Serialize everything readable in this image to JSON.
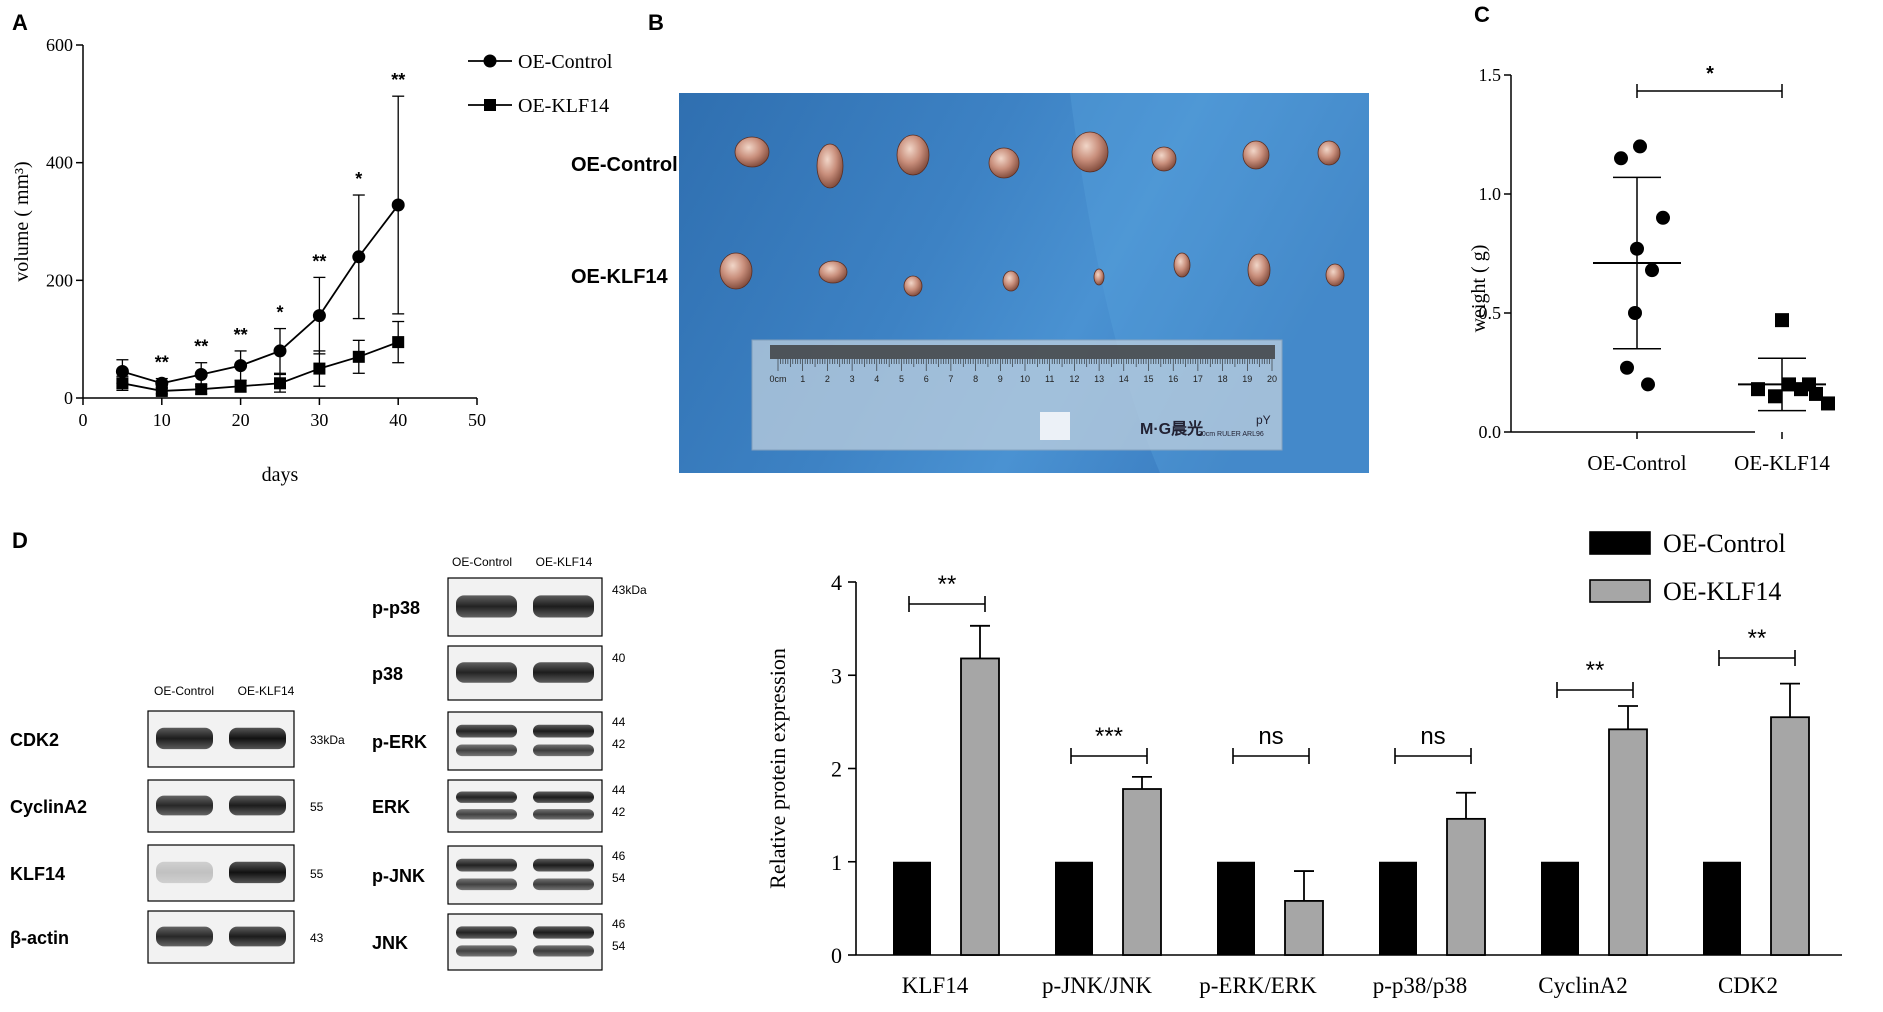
{
  "panels": {
    "a": "A",
    "b": "B",
    "c": "C",
    "d": "D"
  },
  "chart_data": [
    {
      "panel": "A",
      "type": "line",
      "xlabel": "days",
      "ylabel": "volume ( mm³)",
      "xlim": [
        0,
        50
      ],
      "ylim": [
        0,
        600
      ],
      "xticks": [
        "0",
        "10",
        "20",
        "30",
        "40",
        "50"
      ],
      "yticks": [
        "0",
        "200",
        "400",
        "600"
      ],
      "x": [
        5,
        10,
        15,
        20,
        25,
        30,
        35,
        40
      ],
      "series": [
        {
          "name": "OE-Control",
          "marker": "circle",
          "values": [
            45,
            25,
            40,
            55,
            80,
            140,
            240,
            328
          ],
          "errors": [
            20,
            8,
            20,
            25,
            38,
            65,
            105,
            185
          ]
        },
        {
          "name": "OE-KLF14",
          "marker": "square",
          "values": [
            25,
            12,
            15,
            20,
            25,
            50,
            70,
            95
          ],
          "errors": [
            12,
            5,
            8,
            10,
            15,
            30,
            28,
            35
          ]
        }
      ],
      "annotations": [
        "",
        "**",
        "**",
        "**",
        "*",
        "**",
        "*",
        "**"
      ],
      "legend": "top-right"
    },
    {
      "panel": "C",
      "type": "scatter",
      "ylabel": "weight ( g)",
      "ylim": [
        0,
        1.5
      ],
      "yticks": [
        "0.0",
        "0.5",
        "1.0",
        "1.5"
      ],
      "categories": [
        "OE-Control",
        "OE-KLF14"
      ],
      "groups": [
        {
          "name": "OE-Control",
          "marker": "circle",
          "points": [
            1.2,
            1.15,
            0.9,
            0.77,
            0.68,
            0.5,
            0.27,
            0.2
          ],
          "mean": 0.71,
          "sd": 0.36
        },
        {
          "name": "OE-KLF14",
          "marker": "square",
          "points": [
            0.47,
            0.18,
            0.15,
            0.2,
            0.18,
            0.2,
            0.16,
            0.12
          ],
          "mean": 0.2,
          "sd": 0.11
        }
      ],
      "significance": "*"
    },
    {
      "panel": "D",
      "type": "bar",
      "ylabel": "Relative protein expression",
      "ylim": [
        0,
        4
      ],
      "yticks": [
        "0",
        "1",
        "2",
        "3",
        "4"
      ],
      "categories": [
        "KLF14",
        "p-JNK/JNK",
        "p-ERK/ERK",
        "p-p38/p38",
        "CyclinA2",
        "CDK2"
      ],
      "series": [
        {
          "name": "OE-Control",
          "color": "#000000",
          "values": [
            1,
            1,
            1,
            1,
            1,
            1
          ]
        },
        {
          "name": "OE-KLF14",
          "color": "#a6a6a6",
          "values": [
            3.18,
            1.78,
            0.58,
            1.46,
            2.42,
            2.55
          ],
          "errors": [
            0.35,
            0.13,
            0.32,
            0.28,
            0.25,
            0.36
          ]
        }
      ],
      "significance": [
        "**",
        "***",
        "ns",
        "ns",
        "**",
        "**"
      ],
      "legend": "top-right"
    }
  ],
  "photo": {
    "row_labels": [
      "OE-Control",
      "OE-KLF14"
    ],
    "ruler_numbers": [
      "0cm",
      "1",
      "2",
      "3",
      "4",
      "5",
      "6",
      "7",
      "8",
      "9",
      "10",
      "11",
      "12",
      "13",
      "14",
      "15",
      "16",
      "17",
      "18",
      "19",
      "20"
    ],
    "ruler_brand": "M·G晨光",
    "ruler_small": "20cm RULER  ARL96",
    "ruler_mark": "pY"
  },
  "blots_left": {
    "headers": [
      "OE-Control",
      "OE-KLF14"
    ],
    "rows": [
      {
        "label": "CDK2",
        "kda": "33kDa"
      },
      {
        "label": "CyclinA2",
        "kda": "55"
      },
      {
        "label": "KLF14",
        "kda": "55"
      },
      {
        "label": "β-actin",
        "kda": "43"
      }
    ]
  },
  "blots_right": {
    "headers": [
      "OE-Control",
      "OE-KLF14"
    ],
    "rows": [
      {
        "label": "p-p38",
        "kda": [
          "43kDa"
        ]
      },
      {
        "label": "p38",
        "kda": [
          "40"
        ]
      },
      {
        "label": "p-ERK",
        "kda": [
          "44",
          "42"
        ]
      },
      {
        "label": "ERK",
        "kda": [
          "44",
          "42"
        ]
      },
      {
        "label": "p-JNK",
        "kda": [
          "46",
          "54"
        ]
      },
      {
        "label": "JNK",
        "kda": [
          "46",
          "54"
        ]
      }
    ]
  }
}
